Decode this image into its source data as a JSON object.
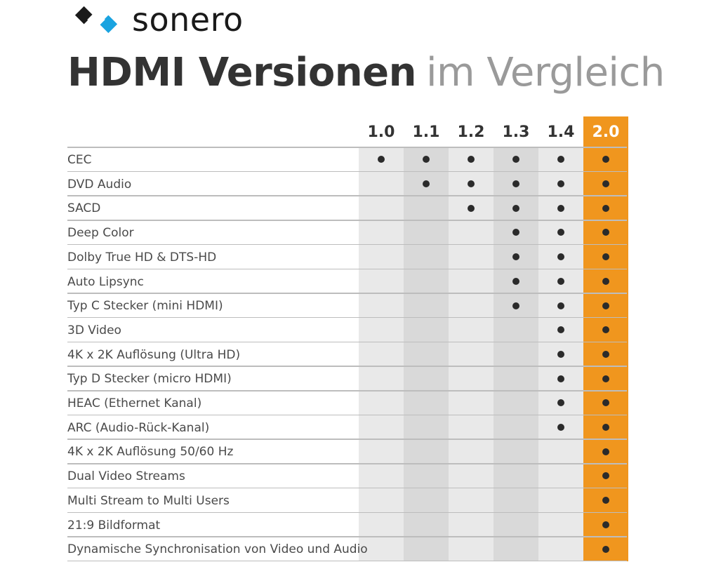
{
  "brand": {
    "name": "sonero",
    "logo_icon": "sonero-diamond-logo",
    "accent": "#1aa3e0"
  },
  "headline": {
    "bold": "HDMI Versionen",
    "light": "im Vergleich"
  },
  "highlight_color": "#f0961e",
  "versions": [
    "1.0",
    "1.1",
    "1.2",
    "1.3",
    "1.4",
    "2.0"
  ],
  "features": [
    {
      "label": "CEC",
      "supported": [
        true,
        true,
        true,
        true,
        true,
        true
      ]
    },
    {
      "label": "DVD Audio",
      "supported": [
        false,
        true,
        true,
        true,
        true,
        true
      ]
    },
    {
      "label": "SACD",
      "supported": [
        false,
        false,
        true,
        true,
        true,
        true
      ]
    },
    {
      "label": "Deep Color",
      "supported": [
        false,
        false,
        false,
        true,
        true,
        true
      ]
    },
    {
      "label": "Dolby True HD & DTS-HD",
      "supported": [
        false,
        false,
        false,
        true,
        true,
        true
      ]
    },
    {
      "label": "Auto Lipsync",
      "supported": [
        false,
        false,
        false,
        true,
        true,
        true
      ]
    },
    {
      "label": "Typ C Stecker (mini HDMI)",
      "supported": [
        false,
        false,
        false,
        true,
        true,
        true
      ]
    },
    {
      "label": "3D Video",
      "supported": [
        false,
        false,
        false,
        false,
        true,
        true
      ]
    },
    {
      "label": "4K x 2K Auflösung (Ultra HD)",
      "supported": [
        false,
        false,
        false,
        false,
        true,
        true
      ]
    },
    {
      "label": "Typ D Stecker (micro HDMI)",
      "supported": [
        false,
        false,
        false,
        false,
        true,
        true
      ]
    },
    {
      "label": "HEAC (Ethernet Kanal)",
      "supported": [
        false,
        false,
        false,
        false,
        true,
        true
      ]
    },
    {
      "label": "ARC (Audio-Rück-Kanal)",
      "supported": [
        false,
        false,
        false,
        false,
        true,
        true
      ]
    },
    {
      "label": "4K x 2K Auflösung 50/60 Hz",
      "supported": [
        false,
        false,
        false,
        false,
        false,
        true
      ]
    },
    {
      "label": "Dual Video Streams",
      "supported": [
        false,
        false,
        false,
        false,
        false,
        true
      ]
    },
    {
      "label": "Multi Stream to Multi Users",
      "supported": [
        false,
        false,
        false,
        false,
        false,
        true
      ]
    },
    {
      "label": "21:9 Bildformat",
      "supported": [
        false,
        false,
        false,
        false,
        false,
        true
      ]
    },
    {
      "label": "Dynamische Synchronisation von Video und Audio",
      "supported": [
        false,
        false,
        false,
        false,
        false,
        true
      ]
    }
  ]
}
